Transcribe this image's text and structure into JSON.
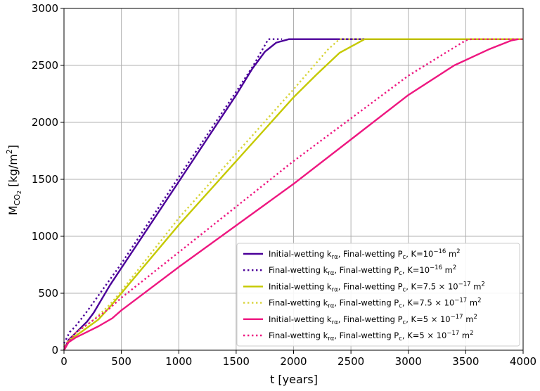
{
  "chart_data": {
    "type": "line",
    "xlabel": "t [years]",
    "ylabel": {
      "base": "M",
      "sub": "CO",
      "sub2": "2",
      "rest": " [kg/m",
      "sup": "2",
      "close": "]"
    },
    "xlim": [
      0,
      4000
    ],
    "ylim": [
      0,
      3000
    ],
    "xticks": [
      0,
      500,
      1000,
      1500,
      2000,
      2500,
      3000,
      3500,
      4000
    ],
    "yticks": [
      0,
      500,
      1000,
      1500,
      2000,
      2500,
      3000
    ],
    "grid": true,
    "legend_position": "lower-right",
    "series": [
      {
        "prefix": "Initial-wetting k",
        "prefix_sub": "rα",
        "mid": ", Final-wetting P",
        "mid_sub": "c",
        "kpre": ", K=",
        "kmant": "10",
        "kexp": "−16",
        "kunit": " m",
        "kunit_sup": "2",
        "color": "#4b0099",
        "dash": "solid",
        "points": [
          [
            0,
            0
          ],
          [
            40,
            90
          ],
          [
            100,
            150
          ],
          [
            200,
            250
          ],
          [
            260,
            330
          ],
          [
            400,
            570
          ],
          [
            1000,
            1480
          ],
          [
            1500,
            2240
          ],
          [
            1640,
            2470
          ],
          [
            1750,
            2620
          ],
          [
            1850,
            2700
          ],
          [
            1960,
            2730
          ],
          [
            2000,
            2730
          ],
          [
            4000,
            2730
          ]
        ]
      },
      {
        "prefix": "Final-wetting k",
        "prefix_sub": "rα",
        "mid": ", Final-wetting P",
        "mid_sub": "c",
        "kpre": ", K=",
        "kmant": "10",
        "kexp": "−16",
        "kunit": " m",
        "kunit_sup": "2",
        "color": "#4b0099",
        "dash": "dotted",
        "points": [
          [
            0,
            60
          ],
          [
            50,
            160
          ],
          [
            100,
            210
          ],
          [
            200,
            340
          ],
          [
            300,
            480
          ],
          [
            500,
            760
          ],
          [
            1000,
            1520
          ],
          [
            1500,
            2270
          ],
          [
            1650,
            2500
          ],
          [
            1780,
            2730
          ],
          [
            1900,
            2730
          ]
        ]
      },
      {
        "prefix": "Initial-wetting k",
        "prefix_sub": "rα",
        "mid": ", Final-wetting P",
        "mid_sub": "c",
        "kpre": ", K=",
        "kmant": "7.5 × 10",
        "kexp": "−17",
        "kunit": " m",
        "kunit_sup": "2",
        "color": "#c5c900",
        "dash": "solid",
        "points": [
          [
            0,
            0
          ],
          [
            50,
            90
          ],
          [
            150,
            160
          ],
          [
            300,
            270
          ],
          [
            400,
            380
          ],
          [
            1000,
            1100
          ],
          [
            2000,
            2220
          ],
          [
            2200,
            2420
          ],
          [
            2400,
            2610
          ],
          [
            2620,
            2730
          ],
          [
            4000,
            2730
          ]
        ]
      },
      {
        "prefix": "Final-wetting k",
        "prefix_sub": "rα",
        "mid": ", Final-wetting P",
        "mid_sub": "c",
        "kpre": ", K=",
        "kmant": "7.5 × 10",
        "kexp": "−17",
        "kunit": " m",
        "kunit_sup": "2",
        "color": "#d8d43a",
        "dash": "dotted",
        "points": [
          [
            0,
            40
          ],
          [
            100,
            150
          ],
          [
            250,
            260
          ],
          [
            400,
            400
          ],
          [
            500,
            520
          ],
          [
            1000,
            1160
          ],
          [
            2000,
            2290
          ],
          [
            2300,
            2640
          ],
          [
            2400,
            2730
          ],
          [
            2600,
            2730
          ]
        ]
      },
      {
        "prefix": "Initial-wetting k",
        "prefix_sub": "rα",
        "mid": ", Final-wetting P",
        "mid_sub": "c",
        "kpre": ", K=",
        "kmant": "5 × 10",
        "kexp": "−17",
        "kunit": " m",
        "kunit_sup": "2",
        "color": "#ee1780",
        "dash": "solid",
        "points": [
          [
            0,
            0
          ],
          [
            40,
            70
          ],
          [
            100,
            110
          ],
          [
            200,
            160
          ],
          [
            300,
            210
          ],
          [
            420,
            280
          ],
          [
            500,
            350
          ],
          [
            1000,
            730
          ],
          [
            2000,
            1460
          ],
          [
            3000,
            2240
          ],
          [
            3400,
            2500
          ],
          [
            3700,
            2640
          ],
          [
            3900,
            2720
          ],
          [
            3960,
            2730
          ]
        ]
      },
      {
        "prefix": "Final-wetting k",
        "prefix_sub": "rα",
        "mid": ", Final-wetting P",
        "mid_sub": "c",
        "kpre": ", K=",
        "kmant": "5 × 10",
        "kexp": "−17",
        "kunit": " m",
        "kunit_sup": "2",
        "color": "#ee1780",
        "dash": "dotted",
        "points": [
          [
            0,
            30
          ],
          [
            100,
            150
          ],
          [
            250,
            260
          ],
          [
            400,
            370
          ],
          [
            500,
            460
          ],
          [
            1000,
            860
          ],
          [
            2000,
            1660
          ],
          [
            3000,
            2410
          ],
          [
            3500,
            2720
          ],
          [
            3550,
            2730
          ],
          [
            4000,
            2730
          ]
        ]
      }
    ]
  }
}
